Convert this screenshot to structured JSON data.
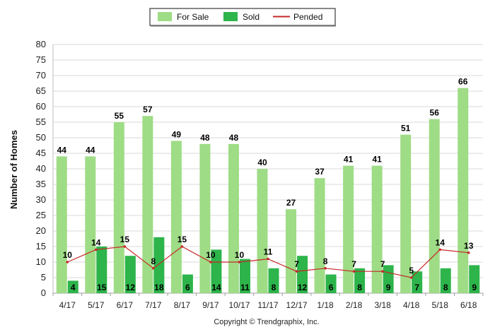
{
  "chart_data": {
    "type": "bar",
    "categories": [
      "4/17",
      "5/17",
      "6/17",
      "7/17",
      "8/17",
      "9/17",
      "10/17",
      "11/17",
      "12/17",
      "1/18",
      "2/18",
      "3/18",
      "4/18",
      "5/18",
      "6/18"
    ],
    "series": [
      {
        "name": "For Sale",
        "kind": "bar",
        "color": "#9edc86",
        "values": [
          44,
          44,
          55,
          57,
          49,
          48,
          48,
          40,
          27,
          37,
          41,
          41,
          51,
          56,
          66
        ]
      },
      {
        "name": "Sold",
        "kind": "bar",
        "color": "#2db44a",
        "values": [
          4,
          15,
          12,
          18,
          6,
          14,
          11,
          8,
          12,
          6,
          8,
          9,
          7,
          8,
          9
        ]
      },
      {
        "name": "Pended",
        "kind": "line",
        "color": "#c62828",
        "values": [
          10,
          14,
          15,
          8,
          15,
          10,
          10,
          11,
          7,
          8,
          7,
          7,
          5,
          14,
          13
        ]
      }
    ],
    "ylabel": "Number of Homes",
    "xlabel": "",
    "ylim": [
      0,
      80
    ],
    "yticks": [
      0,
      5,
      10,
      15,
      20,
      25,
      30,
      35,
      40,
      45,
      50,
      55,
      60,
      65,
      70,
      75,
      80
    ],
    "grid": true,
    "legend_position": "top-center"
  },
  "footer": {
    "copyright": "Copyright © Trendgraphix, Inc."
  }
}
